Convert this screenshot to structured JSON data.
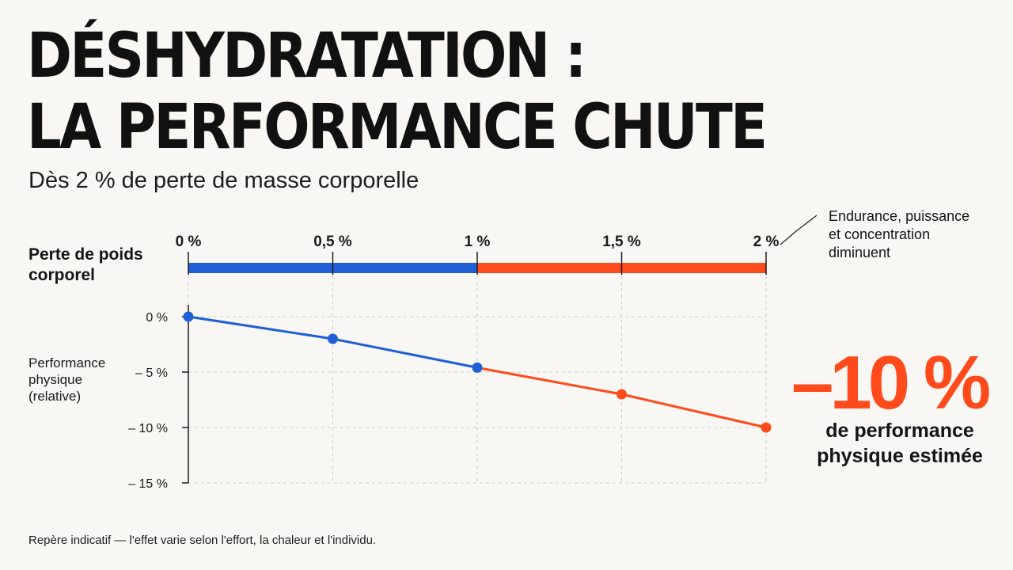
{
  "title_line1": "DÉSHYDRATATION :",
  "title_line2": "LA PERFORMANCE CHUTE",
  "subtitle": "Dès 2 % de perte de masse corporelle",
  "footnote": "Repère indicatif — l'effet varie selon l'effort, la chaleur et l'individu.",
  "colors": {
    "blue": "#1f5fd6",
    "orange": "#ff4a1c",
    "text": "#151515",
    "background": "#f8f7f3"
  },
  "chart_data": {
    "type": "line",
    "x": [
      0,
      0.5,
      1,
      1.5,
      2
    ],
    "x_tick_labels": [
      "0 %",
      "0,5 %",
      "1 %",
      "1,5 %",
      "2 %"
    ],
    "xlim": [
      0,
      2
    ],
    "x_row_label": [
      "Perte de poids",
      "corporel"
    ],
    "y_tick_values": [
      0,
      -5,
      -10,
      -15
    ],
    "y_tick_labels": [
      "0 %",
      "– 5 %",
      "– 10 %",
      "– 15 %"
    ],
    "ylim": [
      -15,
      0
    ],
    "ylabel": [
      "Performance",
      "physique",
      "(relative)"
    ],
    "grid": true,
    "series": [
      {
        "values": [
          0,
          -2,
          -4.6,
          -7,
          -10
        ]
      }
    ],
    "segments": [
      {
        "from_x": 0,
        "to_x": 1,
        "color": "blue"
      },
      {
        "from_x": 1,
        "to_x": 2,
        "color": "orange"
      }
    ],
    "annotation": [
      "Endurance, puissance",
      "et concentration",
      "diminuent"
    ],
    "highlight": {
      "value": "–10 %",
      "text": [
        "de performance",
        "physique estimée"
      ]
    }
  }
}
